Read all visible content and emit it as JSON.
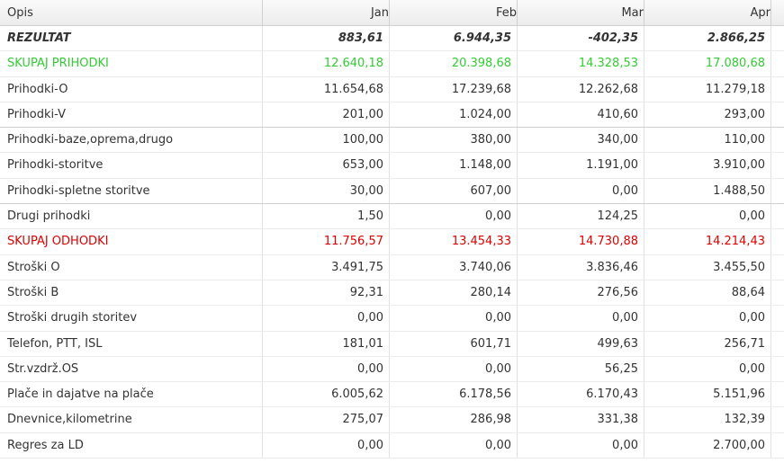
{
  "colors": {
    "income": "#33cc33",
    "expense": "#dd0000"
  },
  "columns": [
    "Opis",
    "Jan",
    "Feb",
    "Mar",
    "Apr"
  ],
  "rows": [
    {
      "label": "REZULTAT",
      "values": [
        "883,61",
        "6.944,35",
        "-402,35",
        "2.866,25"
      ],
      "style": "bold"
    },
    {
      "label": "SKUPAJ PRIHODKI",
      "values": [
        "12.640,18",
        "20.398,68",
        "14.328,53",
        "17.080,68"
      ],
      "style": "green"
    },
    {
      "label": "Prihodki-O",
      "values": [
        "11.654,68",
        "17.239,68",
        "12.262,68",
        "11.279,18"
      ],
      "style": ""
    },
    {
      "label": "Prihodki-V",
      "values": [
        "201,00",
        "1.024,00",
        "410,60",
        "293,00"
      ],
      "style": ""
    },
    {
      "label": "Prihodki-baze,oprema,drugo",
      "values": [
        "100,00",
        "380,00",
        "340,00",
        "110,00"
      ],
      "style": ""
    },
    {
      "label": "Prihodki-storitve",
      "values": [
        "653,00",
        "1.148,00",
        "1.191,00",
        "3.910,00"
      ],
      "style": ""
    },
    {
      "label": "Prihodki-spletne storitve",
      "values": [
        "30,00",
        "607,00",
        "0,00",
        "1.488,50"
      ],
      "style": ""
    },
    {
      "label": "Drugi prihodki",
      "values": [
        "1,50",
        "0,00",
        "124,25",
        "0,00"
      ],
      "style": ""
    },
    {
      "label": "SKUPAJ ODHODKI",
      "values": [
        "11.756,57",
        "13.454,33",
        "14.730,88",
        "14.214,43"
      ],
      "style": "red"
    },
    {
      "label": "Stroški O",
      "values": [
        "3.491,75",
        "3.740,06",
        "3.836,46",
        "3.455,50"
      ],
      "style": ""
    },
    {
      "label": "Stroški B",
      "values": [
        "92,31",
        "280,14",
        "276,56",
        "88,64"
      ],
      "style": ""
    },
    {
      "label": "Stroški drugih storitev",
      "values": [
        "0,00",
        "0,00",
        "0,00",
        "0,00"
      ],
      "style": ""
    },
    {
      "label": "Telefon, PTT, ISL",
      "values": [
        "181,01",
        "601,71",
        "499,63",
        "256,71"
      ],
      "style": ""
    },
    {
      "label": "Str.vzdrž.OS",
      "values": [
        "0,00",
        "0,00",
        "56,25",
        "0,00"
      ],
      "style": ""
    },
    {
      "label": "Plače in dajatve na plače",
      "values": [
        "6.005,62",
        "6.178,56",
        "6.170,43",
        "5.151,96"
      ],
      "style": ""
    },
    {
      "label": "Dnevnice,kilometrine",
      "values": [
        "275,07",
        "286,98",
        "331,38",
        "132,39"
      ],
      "style": ""
    },
    {
      "label": "Regres za LD",
      "values": [
        "0,00",
        "0,00",
        "0,00",
        "2.700,00"
      ],
      "style": ""
    }
  ]
}
